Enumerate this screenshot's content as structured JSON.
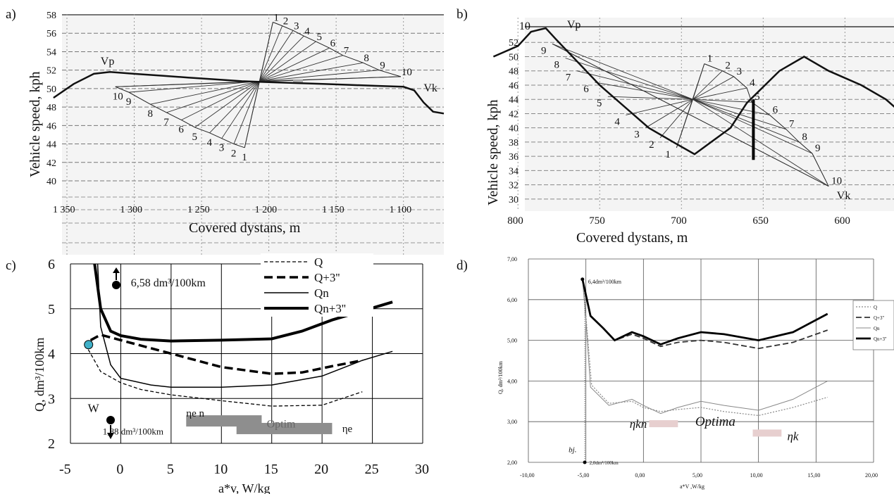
{
  "chart_data": [
    {
      "panel": "a)",
      "type": "line",
      "xlabel": "Covered dystans,  m",
      "ylabel": "Vehicle speed,  kph",
      "xlim": [
        1350,
        1070
      ],
      "ylim": [
        40,
        58
      ],
      "xticks": [
        "1 350",
        "1 300",
        "1 250",
        "1 200",
        "1 150",
        "1 100"
      ],
      "xtick_values": [
        1350,
        1300,
        1250,
        1200,
        1150,
        1100
      ],
      "yticks": [
        40,
        42,
        44,
        46,
        48,
        50,
        52,
        54,
        56,
        58
      ],
      "speed_profile": {
        "x": [
          1360,
          1345,
          1330,
          1318,
          1300,
          1280,
          1260,
          1240,
          1220,
          1200,
          1180,
          1160,
          1140,
          1120,
          1100,
          1092,
          1085,
          1078,
          1070
        ],
        "y": [
          49,
          50.5,
          51.6,
          51.8,
          51.6,
          51.4,
          51.2,
          51.0,
          50.8,
          50.7,
          50.6,
          50.5,
          50.4,
          50.3,
          50.2,
          49.8,
          48.5,
          47.5,
          47.3
        ]
      },
      "pivot": {
        "x": 1207,
        "y": 50.8
      },
      "fan_upper": [
        {
          "label": "1",
          "x": 1197,
          "y": 57.2
        },
        {
          "label": "2",
          "x": 1190,
          "y": 56.8
        },
        {
          "label": "3",
          "x": 1182,
          "y": 56.3
        },
        {
          "label": "4",
          "x": 1174,
          "y": 55.7
        },
        {
          "label": "5",
          "x": 1165,
          "y": 55.1
        },
        {
          "label": "6",
          "x": 1155,
          "y": 54.4
        },
        {
          "label": "7",
          "x": 1145,
          "y": 53.6
        },
        {
          "label": "8",
          "x": 1130,
          "y": 52.8
        },
        {
          "label": "9",
          "x": 1118,
          "y": 52.0
        },
        {
          "label": "10",
          "x": 1102,
          "y": 51.3
        }
      ],
      "fan_lower": [
        {
          "label": "1",
          "x": 1218,
          "y": 43.6
        },
        {
          "label": "2",
          "x": 1226,
          "y": 44.0
        },
        {
          "label": "3",
          "x": 1235,
          "y": 44.6
        },
        {
          "label": "4",
          "x": 1244,
          "y": 45.2
        },
        {
          "label": "5",
          "x": 1255,
          "y": 45.8
        },
        {
          "label": "6",
          "x": 1265,
          "y": 46.6
        },
        {
          "label": "7",
          "x": 1276,
          "y": 47.4
        },
        {
          "label": "8",
          "x": 1288,
          "y": 48.3
        },
        {
          "label": "9",
          "x": 1304,
          "y": 49.6
        },
        {
          "label": "10",
          "x": 1314,
          "y": 50.2
        }
      ],
      "annotations": [
        {
          "text": "Vp",
          "x": 1325,
          "y": 52.6
        },
        {
          "text": "Vk",
          "x": 1085,
          "y": 49.7
        }
      ]
    },
    {
      "panel": "b)",
      "type": "line",
      "xlabel": "a*v, W/kg",
      "ylabel": "Q, dm³/100km",
      "xlim": [
        -5,
        30
      ],
      "ylim": [
        2,
        6
      ],
      "xticks": [
        -5,
        0,
        5,
        10,
        15,
        20,
        25,
        30
      ],
      "yticks": [
        2,
        3,
        4,
        5,
        6
      ],
      "legend": [
        "Q",
        "Q+3''",
        "Qn",
        "Qn+3''"
      ],
      "series": [
        {
          "name": "Q",
          "style": "thin-dashed",
          "x": [
            -3.5,
            -2,
            0,
            2,
            5,
            10,
            15,
            20,
            24
          ],
          "y": [
            4.2,
            3.6,
            3.35,
            3.2,
            3.08,
            2.95,
            2.83,
            2.85,
            3.15
          ]
        },
        {
          "name": "Q+3''",
          "style": "thick-dashed",
          "x": [
            -3,
            -2,
            0,
            5,
            10,
            15,
            18,
            21,
            24
          ],
          "y": [
            4.3,
            4.42,
            4.3,
            4.0,
            3.7,
            3.55,
            3.58,
            3.72,
            3.85
          ]
        },
        {
          "name": "Qn",
          "style": "thin-solid",
          "x": [
            -2.3,
            -2,
            -1,
            0,
            3,
            5,
            10,
            15,
            20,
            24,
            27
          ],
          "y": [
            6.0,
            4.6,
            3.75,
            3.45,
            3.3,
            3.25,
            3.25,
            3.3,
            3.5,
            3.85,
            4.05
          ]
        },
        {
          "name": "Qn+3''",
          "style": "thick-solid",
          "x": [
            -2.6,
            -2,
            -1,
            0,
            2,
            5,
            10,
            15,
            18,
            21,
            24,
            27
          ],
          "y": [
            6.0,
            5.0,
            4.5,
            4.4,
            4.32,
            4.28,
            4.3,
            4.33,
            4.5,
            4.75,
            4.95,
            5.15
          ]
        }
      ],
      "annotations": [
        {
          "text": "6,58 dm³/100km",
          "x": 1,
          "y": 5.5
        },
        {
          "text": "W",
          "x": -3,
          "y": 2.7
        },
        {
          "text": "1,88 dm³/100km",
          "x": -2.5,
          "y": 2.2
        },
        {
          "text": "ηe n",
          "x": 6.5,
          "y": 2.6
        },
        {
          "text": "Optim",
          "x": 14.5,
          "y": 2.35
        },
        {
          "text": "ηe",
          "x": 22,
          "y": 2.25
        }
      ],
      "bars": [
        {
          "x0": 6.5,
          "x1": 14,
          "y": 2.5
        },
        {
          "x0": 11.5,
          "x1": 21,
          "y": 2.33
        }
      ]
    },
    {
      "panel": "c)",
      "type": "line",
      "xlabel": "Covered dystans, m",
      "ylabel": "Vehicle speed,  kph",
      "xlim": [
        810,
        570
      ],
      "ylim": [
        29,
        54
      ],
      "xticks": [
        800,
        750,
        700,
        650,
        600
      ],
      "yticks": [
        30,
        32,
        34,
        36,
        38,
        40,
        42,
        44,
        46,
        48,
        50,
        52
      ],
      "speed_profile": {
        "x": [
          815,
          800,
          792,
          783,
          777,
          750,
          720,
          705,
          692,
          670,
          660,
          640,
          625,
          610,
          590,
          575,
          565
        ],
        "y": [
          50,
          51.5,
          53.5,
          54,
          52.5,
          46,
          40,
          38,
          36.3,
          40,
          43.5,
          48,
          50,
          48,
          46,
          44,
          42
        ]
      },
      "pivot": {
        "x": 693,
        "y": 44.0
      },
      "fan_upper": [
        {
          "label": "1",
          "x": 686,
          "y": 49.0
        },
        {
          "label": "2",
          "x": 675,
          "y": 48.0
        },
        {
          "label": "3",
          "x": 668,
          "y": 47.2
        },
        {
          "label": "4",
          "x": 660,
          "y": 45.6
        },
        {
          "label": "5",
          "x": 657,
          "y": 43.6
        },
        {
          "label": "6",
          "x": 646,
          "y": 41.8
        },
        {
          "label": "7",
          "x": 636,
          "y": 39.8
        },
        {
          "label": "8",
          "x": 628,
          "y": 38.0
        },
        {
          "label": "9",
          "x": 620,
          "y": 36.4
        },
        {
          "label": "10",
          "x": 610,
          "y": 31.8
        }
      ],
      "fan_lower": [
        {
          "label": "1",
          "x": 703,
          "y": 37.2
        },
        {
          "label": "2",
          "x": 713,
          "y": 38.6
        },
        {
          "label": "3",
          "x": 722,
          "y": 40.0
        },
        {
          "label": "4",
          "x": 734,
          "y": 41.8
        },
        {
          "label": "5",
          "x": 745,
          "y": 44.4
        },
        {
          "label": "6",
          "x": 753,
          "y": 46.4
        },
        {
          "label": "7",
          "x": 764,
          "y": 48.0
        },
        {
          "label": "8",
          "x": 771,
          "y": 49.8
        },
        {
          "label": "9",
          "x": 779,
          "y": 51.8
        }
      ],
      "annotations": [
        {
          "text": "10",
          "x": 795,
          "y": 53.6
        },
        {
          "text": "Vp",
          "x": 770,
          "y": 54.0
        },
        {
          "text": "Vk",
          "x": 605,
          "y": 30.0
        }
      ],
      "marker_bar": {
        "x": 656,
        "y0": 35.5,
        "y1": 44.0
      }
    },
    {
      "panel": "d)",
      "type": "line",
      "xlabel": "a*V ,W/kg",
      "ylabel": "Q, dm³/100km",
      "xlim": [
        -10,
        20
      ],
      "ylim": [
        2,
        7
      ],
      "xticks": [
        "-10,00",
        "-5,00",
        "0,00",
        "5,00",
        "10,00",
        "15,00",
        "20,00"
      ],
      "xtick_values": [
        -10,
        -5,
        0,
        5,
        10,
        15,
        20
      ],
      "yticks": [
        "2,00",
        "3,00",
        "4,00",
        "5,00",
        "6,00",
        "7,00"
      ],
      "ytick_values": [
        2,
        3,
        4,
        5,
        6,
        7
      ],
      "legend": [
        "Q",
        "Q+3''",
        "Qn",
        "Qn+3''"
      ],
      "series": [
        {
          "name": "Q",
          "style": "dotted",
          "x": [
            -5.3,
            -5,
            -4.5,
            -3,
            -1,
            0,
            1.5,
            3,
            5,
            7,
            10,
            13,
            16
          ],
          "y": [
            6.5,
            5.6,
            3.9,
            3.45,
            3.5,
            3.35,
            3.25,
            3.3,
            3.35,
            3.25,
            3.15,
            3.35,
            3.6
          ]
        },
        {
          "name": "Q+3''",
          "style": "dashed",
          "x": [
            -5.3,
            -4.6,
            -3.5,
            -2.5,
            -1,
            0,
            1.5,
            3,
            5,
            7,
            10,
            13,
            16
          ],
          "y": [
            6.5,
            5.6,
            5.3,
            5.0,
            5.15,
            5.05,
            4.85,
            4.95,
            5.0,
            4.95,
            4.8,
            4.95,
            5.25
          ]
        },
        {
          "name": "Qn",
          "style": "thin-solid",
          "x": [
            -5.3,
            -5,
            -4.6,
            -3,
            -1,
            0,
            1.5,
            3,
            5,
            7,
            10,
            13,
            16
          ],
          "y": [
            6.5,
            5.5,
            3.85,
            3.4,
            3.55,
            3.4,
            3.2,
            3.35,
            3.5,
            3.4,
            3.28,
            3.55,
            4.0
          ]
        },
        {
          "name": "Qn+3''",
          "style": "thick-solid",
          "x": [
            -5.3,
            -4.6,
            -3.5,
            -2.5,
            -1,
            0,
            1.5,
            3,
            5,
            7,
            10,
            13,
            16
          ],
          "y": [
            6.5,
            5.6,
            5.3,
            5.0,
            5.2,
            5.1,
            4.9,
            5.05,
            5.2,
            5.15,
            5.0,
            5.2,
            5.65
          ]
        }
      ],
      "annotations": [
        {
          "text": "6,4dm³/100km",
          "x": -4.8,
          "y": 6.45
        },
        {
          "text": "2,0dm³/100km",
          "x": -4.7,
          "y": 2.0
        },
        {
          "text": "bj.",
          "x": -6.5,
          "y": 2.3
        },
        {
          "text": "ηkn",
          "x": -1.2,
          "y": 2.9
        },
        {
          "text": "Optima",
          "x": 4.5,
          "y": 2.95
        },
        {
          "text": "ηk",
          "x": 12.5,
          "y": 2.6
        }
      ],
      "bars": [
        {
          "x0": 0.5,
          "x1": 3,
          "y": 2.95
        },
        {
          "x0": 9.5,
          "x1": 12,
          "y": 2.72
        }
      ]
    }
  ],
  "panel_labels": [
    "a)",
    "b)",
    "c)",
    "d)"
  ]
}
